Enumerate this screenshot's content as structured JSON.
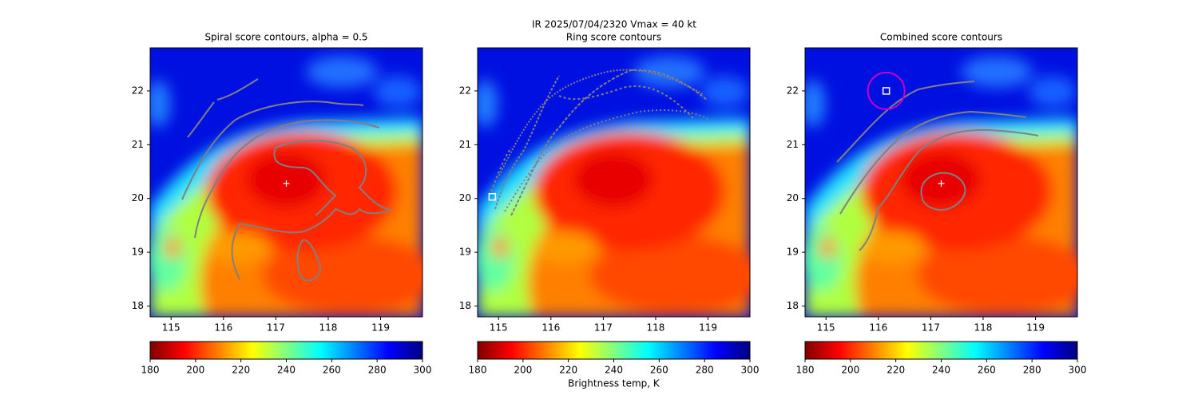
{
  "suptitle": "IR  2025/07/04/2320    Vmax = 40 kt",
  "chart_data": [
    {
      "type": "image",
      "title": "Spiral score contours, alpha =  0.5",
      "xlim": [
        114.6,
        119.8
      ],
      "ylim": [
        17.8,
        22.8
      ],
      "xticks": [
        115,
        116,
        117,
        118,
        119
      ],
      "yticks": [
        18,
        19,
        20,
        21,
        22
      ],
      "markers": [
        {
          "x": 117.2,
          "y": 20.28,
          "symbol": "plus",
          "color": "#ffffff"
        }
      ],
      "colorbar": {
        "lim": [
          180,
          300
        ],
        "ticks": [
          180,
          200,
          220,
          240,
          260,
          280,
          300
        ],
        "colormap": "jet_r"
      }
    },
    {
      "type": "image",
      "title": "Ring score contours",
      "xlim": [
        114.6,
        119.8
      ],
      "ylim": [
        17.8,
        22.8
      ],
      "xticks": [
        115,
        116,
        117,
        118,
        119
      ],
      "yticks": [
        18,
        19,
        20,
        21,
        22
      ],
      "markers": [
        {
          "x": 114.88,
          "y": 20.03,
          "symbol": "square",
          "color": "#ffffff"
        }
      ],
      "colorbar": {
        "lim": [
          180,
          300
        ],
        "ticks": [
          180,
          200,
          220,
          240,
          260,
          280,
          300
        ],
        "colormap": "jet_r",
        "label": "Brightness temp, K"
      }
    },
    {
      "type": "image",
      "title": "Combined score contours",
      "xlim": [
        114.6,
        119.8
      ],
      "ylim": [
        17.8,
        22.8
      ],
      "xticks": [
        115,
        116,
        117,
        118,
        119
      ],
      "yticks": [
        18,
        19,
        20,
        21,
        22
      ],
      "markers": [
        {
          "x": 117.2,
          "y": 20.28,
          "symbol": "plus",
          "color": "#ffffff"
        },
        {
          "x": 116.15,
          "y": 22.0,
          "symbol": "square",
          "color": "#ffffff"
        },
        {
          "x": 116.15,
          "y": 22.0,
          "symbol": "circle",
          "color": "#c800c8"
        }
      ],
      "colorbar": {
        "lim": [
          180,
          300
        ],
        "ticks": [
          180,
          200,
          220,
          240,
          260,
          280,
          300
        ],
        "colormap": "jet_r"
      }
    }
  ]
}
